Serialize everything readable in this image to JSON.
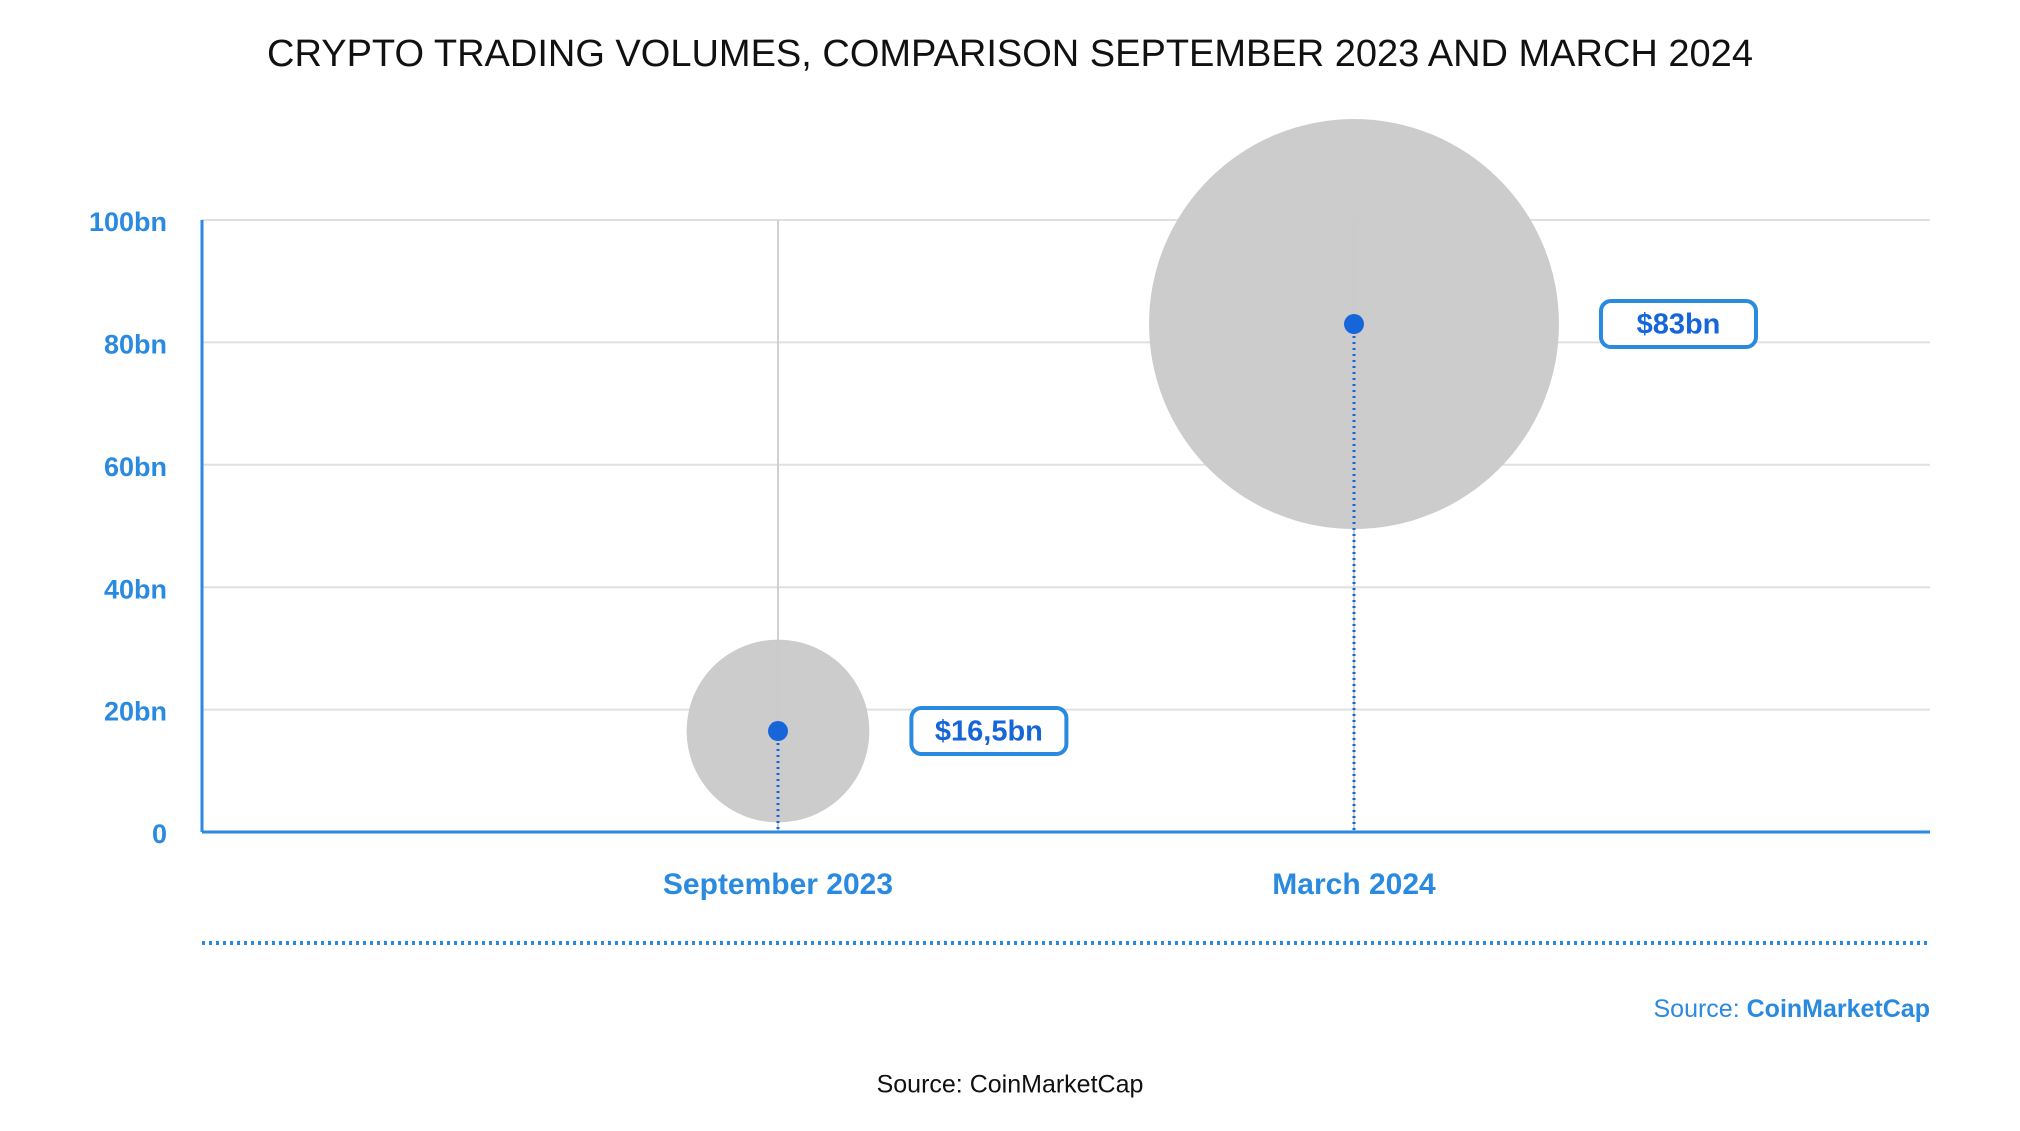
{
  "chart_data": {
    "type": "bubble",
    "title": "CRYPTO TRADING VOLUMES, COMPARISON SEPTEMBER 2023 AND MARCH 2024",
    "categories": [
      "September 2023",
      "March 2024"
    ],
    "values": [
      16.5,
      83
    ],
    "value_labels": [
      "$16,5bn",
      "$83bn"
    ],
    "color": "#1666d9",
    "bubble_color": "#c9c9c9",
    "ylim": [
      0,
      100
    ],
    "yticks": [
      0,
      {
        "value": 20,
        "label": "20bn"
      },
      {
        "value": 40,
        "label": "40bn"
      },
      {
        "value": 60,
        "label": "60bn"
      },
      {
        "value": 80,
        "label": "80bn"
      },
      {
        "value": 100,
        "label": "100bn"
      }
    ],
    "grid": true,
    "source_label": "Source:",
    "source_name": "CoinMarketCap",
    "caption": "Source: CoinMarketCap"
  }
}
